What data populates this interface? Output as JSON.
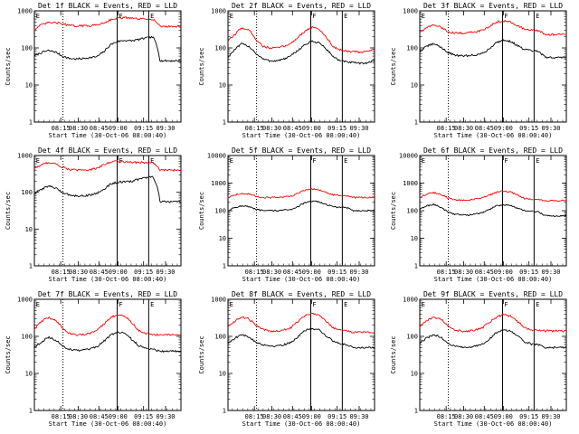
{
  "chart_data": [
    {
      "type": "line",
      "title": "Det 1f BLACK = Events, RED = LLD",
      "xlabel": "Start Time (30-Oct-06 08:00:40)",
      "ylabel": "Counts/sec",
      "yscale": "log",
      "ylim": [
        1,
        1000
      ],
      "yticks": [
        "1",
        "10",
        "100",
        "1000"
      ],
      "xlim": [
        0,
        100
      ],
      "xticks": [
        "08:15",
        "08:30",
        "08:45",
        "09:00",
        "09:15",
        "09:30"
      ],
      "markers": [
        "E",
        "F",
        "E"
      ],
      "series": [
        {
          "name": "Events",
          "color": "#000000",
          "values": [
            60,
            75,
            85,
            78,
            60,
            52,
            50,
            52,
            55,
            58,
            80,
            125,
            150,
            160,
            155,
            170,
            185,
            195,
            45,
            45,
            45,
            45
          ]
        },
        {
          "name": "LLD",
          "color": "#ff0000",
          "values": [
            300,
            420,
            480,
            480,
            450,
            400,
            390,
            395,
            400,
            420,
            480,
            580,
            640,
            650,
            630,
            600,
            600,
            600,
            380,
            380,
            380,
            380
          ]
        }
      ]
    },
    {
      "type": "line",
      "title": "Det 2f BLACK = Events, RED = LLD",
      "xlabel": "Start Time (30-Oct-06 08:00:40)",
      "ylabel": "Counts/sec",
      "yscale": "log",
      "ylim": [
        1,
        1000
      ],
      "yticks": [
        "1",
        "10",
        "100",
        "1000"
      ],
      "xlim": [
        0,
        100
      ],
      "xticks": [
        "08:15",
        "08:30",
        "08:45",
        "09:00",
        "09:15",
        "09:30"
      ],
      "markers": [
        "E",
        "F",
        "E"
      ],
      "series": [
        {
          "name": "Events",
          "color": "#000000",
          "values": [
            55,
            90,
            130,
            110,
            70,
            50,
            45,
            45,
            50,
            60,
            85,
            120,
            150,
            140,
            95,
            60,
            45,
            42,
            40,
            38,
            40,
            45
          ]
        },
        {
          "name": "LLD",
          "color": "#ff0000",
          "values": [
            150,
            230,
            350,
            300,
            170,
            110,
            100,
            100,
            110,
            130,
            190,
            280,
            360,
            320,
            200,
            110,
            90,
            80,
            80,
            75,
            80,
            90
          ]
        }
      ]
    },
    {
      "type": "line",
      "title": "Det 3f BLACK = Events, RED = LLD",
      "xlabel": "Start Time (30-Oct-06 08:00:40)",
      "ylabel": "Counts/sec",
      "yscale": "log",
      "ylim": [
        1,
        1000
      ],
      "yticks": [
        "1",
        "10",
        "100",
        "1000"
      ],
      "xlim": [
        0,
        100
      ],
      "xticks": [
        "08:15",
        "08:30",
        "08:45",
        "09:00",
        "09:15",
        "09:30"
      ],
      "markers": [
        "E",
        "F",
        "E"
      ],
      "series": [
        {
          "name": "Events",
          "color": "#000000",
          "values": [
            80,
            110,
            130,
            105,
            75,
            65,
            60,
            62,
            65,
            70,
            95,
            140,
            165,
            150,
            115,
            90,
            85,
            80,
            55,
            55,
            55,
            55
          ]
        },
        {
          "name": "LLD",
          "color": "#ff0000",
          "values": [
            260,
            350,
            420,
            360,
            280,
            250,
            250,
            260,
            270,
            300,
            380,
            500,
            540,
            500,
            400,
            320,
            300,
            290,
            230,
            230,
            230,
            230
          ]
        }
      ]
    },
    {
      "type": "line",
      "title": "Det 4f BLACK = Events, RED = LLD",
      "xlabel": "Start Time (30-Oct-06 08:00:40)",
      "ylabel": "Counts/sec",
      "yscale": "log",
      "ylim": [
        1,
        1000
      ],
      "yticks": [
        "1",
        "10",
        "100",
        "1000"
      ],
      "xlim": [
        0,
        100
      ],
      "xticks": [
        "08:15",
        "08:30",
        "08:45",
        "09:00",
        "09:15",
        "09:30"
      ],
      "markers": [
        "E",
        "F",
        "E"
      ],
      "series": [
        {
          "name": "Events",
          "color": "#000000",
          "values": [
            90,
            120,
            150,
            130,
            100,
            85,
            80,
            80,
            85,
            95,
            120,
            170,
            190,
            190,
            200,
            230,
            250,
            260,
            55,
            55,
            55,
            55
          ]
        },
        {
          "name": "LLD",
          "color": "#ff0000",
          "values": [
            450,
            550,
            650,
            600,
            480,
            420,
            400,
            400,
            420,
            450,
            560,
            680,
            700,
            680,
            650,
            650,
            640,
            640,
            400,
            400,
            400,
            400
          ]
        }
      ]
    },
    {
      "type": "line",
      "title": "Det 5f BLACK = Events, RED = LLD",
      "xlabel": "Start Time (30-Oct-06 08:00:40)",
      "ylabel": "Counts/sec",
      "yscale": "log",
      "ylim": [
        1,
        10000
      ],
      "yticks": [
        "1",
        "10",
        "100",
        "1000",
        "10000"
      ],
      "xlim": [
        0,
        100
      ],
      "xticks": [
        "08:15",
        "08:30",
        "08:45",
        "09:00",
        "09:15",
        "09:30"
      ],
      "markers": [
        "E",
        "F",
        "E"
      ],
      "series": [
        {
          "name": "Events",
          "color": "#000000",
          "values": [
            100,
            130,
            150,
            140,
            110,
            100,
            100,
            100,
            105,
            110,
            140,
            190,
            220,
            210,
            170,
            140,
            130,
            130,
            100,
            100,
            100,
            100
          ]
        },
        {
          "name": "LLD",
          "color": "#ff0000",
          "values": [
            300,
            380,
            420,
            400,
            330,
            300,
            300,
            300,
            310,
            330,
            420,
            560,
            620,
            580,
            460,
            380,
            350,
            350,
            300,
            300,
            300,
            300
          ]
        }
      ]
    },
    {
      "type": "line",
      "title": "Det 6f BLACK = Events, RED = LLD",
      "xlabel": "Start Time (30-Oct-06 08:00:40)",
      "ylabel": "Counts/sec",
      "yscale": "log",
      "ylim": [
        1,
        10000
      ],
      "yticks": [
        "1",
        "10",
        "100",
        "1000",
        "10000"
      ],
      "xlim": [
        0,
        100
      ],
      "xticks": [
        "08:15",
        "08:30",
        "08:45",
        "09:00",
        "09:15",
        "09:30"
      ],
      "markers": [
        "E",
        "F",
        "E"
      ],
      "series": [
        {
          "name": "Events",
          "color": "#000000",
          "values": [
            110,
            150,
            170,
            130,
            90,
            75,
            70,
            70,
            75,
            85,
            110,
            150,
            165,
            155,
            120,
            100,
            95,
            90,
            65,
            65,
            65,
            65
          ]
        },
        {
          "name": "LLD",
          "color": "#ff0000",
          "values": [
            300,
            400,
            450,
            380,
            290,
            250,
            240,
            245,
            260,
            290,
            370,
            460,
            520,
            480,
            360,
            280,
            260,
            250,
            230,
            230,
            230,
            230
          ]
        }
      ]
    },
    {
      "type": "line",
      "title": "Det 7f BLACK = Events, RED = LLD",
      "xlabel": "Start Time (30-Oct-06 08:00:40)",
      "ylabel": "Counts/sec",
      "yscale": "log",
      "ylim": [
        1,
        1000
      ],
      "yticks": [
        "1",
        "10",
        "100",
        "1000"
      ],
      "xlim": [
        0,
        100
      ],
      "xticks": [
        "08:15",
        "08:30",
        "08:45",
        "09:00",
        "09:15",
        "09:30"
      ],
      "markers": [
        "E",
        "F",
        "E"
      ],
      "series": [
        {
          "name": "Events",
          "color": "#000000",
          "values": [
            50,
            70,
            95,
            80,
            55,
            45,
            42,
            42,
            45,
            52,
            75,
            110,
            130,
            120,
            80,
            55,
            48,
            45,
            40,
            40,
            40,
            40
          ]
        },
        {
          "name": "LLD",
          "color": "#ff0000",
          "values": [
            150,
            250,
            320,
            270,
            170,
            120,
            110,
            110,
            120,
            140,
            220,
            330,
            380,
            350,
            220,
            140,
            120,
            110,
            110,
            110,
            110,
            110
          ]
        }
      ]
    },
    {
      "type": "line",
      "title": "Det 8f BLACK = Events, RED = LLD",
      "xlabel": "Start Time (30-Oct-06 08:00:40)",
      "ylabel": "Counts/sec",
      "yscale": "log",
      "ylim": [
        1,
        1000
      ],
      "yticks": [
        "1",
        "10",
        "100",
        "1000"
      ],
      "xlim": [
        0,
        100
      ],
      "xticks": [
        "08:15",
        "08:30",
        "08:45",
        "09:00",
        "09:15",
        "09:30"
      ],
      "markers": [
        "E",
        "F",
        "E"
      ],
      "series": [
        {
          "name": "Events",
          "color": "#000000",
          "values": [
            65,
            90,
            110,
            95,
            70,
            60,
            55,
            55,
            60,
            68,
            95,
            140,
            165,
            150,
            105,
            75,
            65,
            60,
            50,
            50,
            50,
            50
          ]
        },
        {
          "name": "LLD",
          "color": "#ff0000",
          "values": [
            180,
            260,
            330,
            290,
            200,
            150,
            140,
            140,
            150,
            170,
            250,
            360,
            420,
            380,
            260,
            170,
            150,
            140,
            130,
            130,
            130,
            130
          ]
        }
      ]
    },
    {
      "type": "line",
      "title": "Det 9f BLACK = Events, RED = LLD",
      "xlabel": "Start Time (30-Oct-06 08:00:40)",
      "ylabel": "Counts/sec",
      "yscale": "log",
      "ylim": [
        1,
        1000
      ],
      "yticks": [
        "1",
        "10",
        "100",
        "1000"
      ],
      "xlim": [
        0,
        100
      ],
      "xticks": [
        "08:15",
        "08:30",
        "08:45",
        "09:00",
        "09:15",
        "09:30"
      ],
      "markers": [
        "E",
        "F",
        "E"
      ],
      "series": [
        {
          "name": "Events",
          "color": "#000000",
          "values": [
            65,
            90,
            110,
            95,
            65,
            55,
            50,
            50,
            55,
            62,
            85,
            125,
            150,
            140,
            100,
            70,
            62,
            60,
            50,
            50,
            50,
            50
          ]
        },
        {
          "name": "LLD",
          "color": "#ff0000",
          "values": [
            180,
            260,
            330,
            290,
            200,
            150,
            140,
            140,
            150,
            170,
            240,
            330,
            380,
            350,
            250,
            170,
            150,
            145,
            140,
            140,
            140,
            140
          ]
        }
      ]
    }
  ]
}
